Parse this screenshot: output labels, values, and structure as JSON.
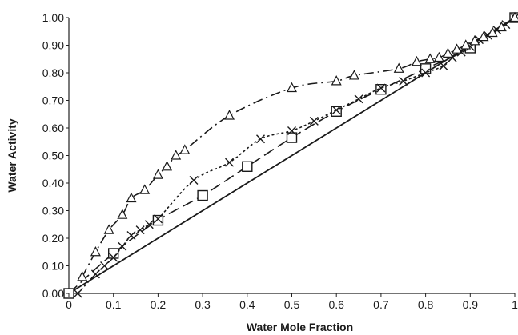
{
  "chart_data": {
    "type": "line",
    "title": "",
    "xlabel": "Water Mole Fraction",
    "ylabel": "Water Activity",
    "xlim": [
      0,
      1
    ],
    "ylim": [
      0,
      1
    ],
    "x_ticks": [
      "0",
      "0.1",
      "0.2",
      "0.3",
      "0.4",
      "0.5",
      "0.6",
      "0.7",
      "0.8",
      "0.9",
      "1"
    ],
    "y_ticks": [
      "0.00",
      "0.10",
      "0.20",
      "0.30",
      "0.40",
      "0.50",
      "0.60",
      "0.70",
      "0.80",
      "0.90",
      "1.00"
    ],
    "grid": false,
    "legend": "none",
    "series": [
      {
        "style": "solid",
        "marker": "none",
        "x": [
          0,
          1
        ],
        "y": [
          0,
          1
        ]
      },
      {
        "style": "long-dash",
        "marker": "square",
        "x": [
          0,
          0.1,
          0.2,
          0.3,
          0.4,
          0.5,
          0.6,
          0.7,
          0.8,
          0.9,
          1.0
        ],
        "y": [
          0,
          0.145,
          0.265,
          0.355,
          0.46,
          0.565,
          0.66,
          0.74,
          0.815,
          0.89,
          1.0
        ]
      },
      {
        "style": "dotted",
        "marker": "x",
        "x": [
          0.02,
          0.06,
          0.08,
          0.1,
          0.12,
          0.14,
          0.16,
          0.18,
          0.2,
          0.28,
          0.36,
          0.43,
          0.5,
          0.55,
          0.6,
          0.65,
          0.7,
          0.75,
          0.8,
          0.84,
          0.86,
          0.88,
          0.9,
          0.92,
          0.94,
          0.96,
          0.98,
          1.0
        ],
        "y": [
          0.0,
          0.07,
          0.1,
          0.13,
          0.17,
          0.21,
          0.23,
          0.25,
          0.27,
          0.41,
          0.475,
          0.56,
          0.59,
          0.625,
          0.665,
          0.705,
          0.745,
          0.77,
          0.8,
          0.825,
          0.855,
          0.875,
          0.895,
          0.92,
          0.935,
          0.955,
          0.975,
          1.0
        ]
      },
      {
        "style": "dash-dot",
        "marker": "triangle",
        "x": [
          0.03,
          0.06,
          0.09,
          0.12,
          0.14,
          0.17,
          0.2,
          0.22,
          0.24,
          0.26,
          0.36,
          0.5,
          0.6,
          0.64,
          0.74,
          0.78,
          0.81,
          0.83,
          0.85,
          0.87,
          0.89,
          0.91,
          0.93,
          0.95,
          0.97,
          1.0
        ],
        "y": [
          0.06,
          0.15,
          0.23,
          0.285,
          0.345,
          0.375,
          0.43,
          0.46,
          0.5,
          0.52,
          0.645,
          0.745,
          0.77,
          0.79,
          0.815,
          0.84,
          0.85,
          0.855,
          0.87,
          0.885,
          0.9,
          0.915,
          0.93,
          0.945,
          0.965,
          1.0
        ]
      }
    ]
  }
}
